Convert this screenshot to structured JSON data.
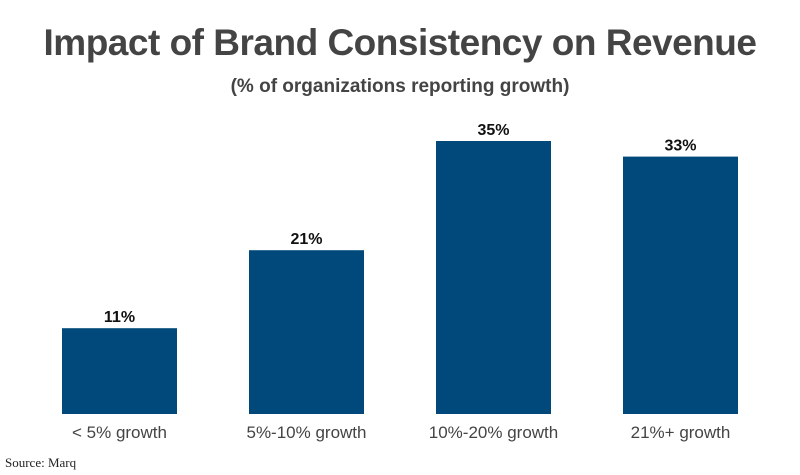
{
  "chart_data": {
    "type": "bar",
    "title": "Impact of Brand Consistency on Revenue",
    "subtitle": "(% of organizations reporting growth)",
    "categories": [
      "< 5% growth",
      "5%-10% growth",
      "10%-20% growth",
      "21%+ growth"
    ],
    "values": [
      11,
      21,
      35,
      33
    ],
    "data_labels": [
      "11%",
      "21%",
      "35%",
      "33%"
    ],
    "xlabel": "",
    "ylabel": "",
    "ylim": [
      0,
      35
    ],
    "grid": false,
    "bar_color": "#00497a",
    "source": "Source: Marq"
  }
}
